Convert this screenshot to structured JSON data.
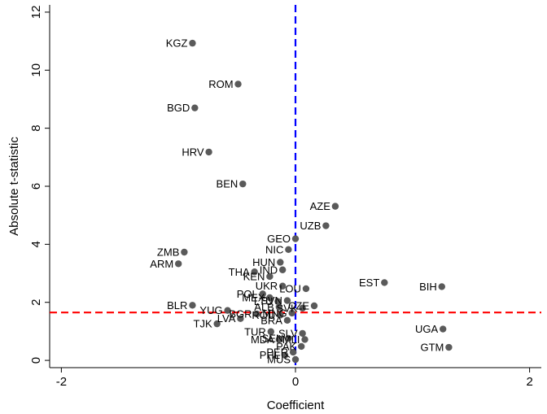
{
  "chart_data": {
    "type": "scatter",
    "title": "",
    "xlabel": "Coefficient",
    "ylabel": "Absolute t-statistic",
    "xlim": [
      -2.1,
      2.1
    ],
    "ylim": [
      -0.25,
      12.25
    ],
    "xticks": [
      -2,
      0,
      2
    ],
    "yticks": [
      0,
      2,
      4,
      6,
      8,
      10,
      12
    ],
    "grid": false,
    "legend": "none",
    "colors": {
      "points": "#5a5a5a",
      "axis": "#000000",
      "vertical_reference": "#0000ff",
      "horizontal_reference": "#ff0000"
    },
    "reference_lines": {
      "vertical_x": 0,
      "horizontal_y": 1.65
    },
    "points": [
      {
        "label": "KGZ",
        "x": -0.88,
        "y": 10.93
      },
      {
        "label": "ROM",
        "x": -0.49,
        "y": 9.52
      },
      {
        "label": "BGD",
        "x": -0.86,
        "y": 8.7
      },
      {
        "label": "HRV",
        "x": -0.74,
        "y": 7.18
      },
      {
        "label": "BEN",
        "x": -0.45,
        "y": 6.08
      },
      {
        "label": "AZE",
        "x": 0.34,
        "y": 5.31
      },
      {
        "label": "UZB",
        "x": 0.26,
        "y": 4.64
      },
      {
        "label": "GEO",
        "x": 0.0,
        "y": 4.19
      },
      {
        "label": "NIC",
        "x": -0.06,
        "y": 3.82
      },
      {
        "label": "ZMB",
        "x": -0.95,
        "y": 3.73
      },
      {
        "label": "ARM",
        "x": -1.0,
        "y": 3.33
      },
      {
        "label": "HUN",
        "x": -0.13,
        "y": 3.38
      },
      {
        "label": "IND",
        "x": -0.11,
        "y": 3.12
      },
      {
        "label": "THA",
        "x": -0.35,
        "y": 3.05
      },
      {
        "label": "KEN",
        "x": -0.22,
        "y": 2.89
      },
      {
        "label": "EST",
        "x": 0.76,
        "y": 2.68
      },
      {
        "label": "BIH",
        "x": 1.25,
        "y": 2.54
      },
      {
        "label": "UKR",
        "x": -0.11,
        "y": 2.56
      },
      {
        "label": "LOU",
        "x": 0.09,
        "y": 2.47
      },
      {
        "label": "POL",
        "x": -0.28,
        "y": 2.29
      },
      {
        "label": "MEX",
        "x": -0.22,
        "y": 2.16
      },
      {
        "label": "LTU",
        "x": -0.15,
        "y": 2.03
      },
      {
        "label": "SVN",
        "x": -0.07,
        "y": 2.06
      },
      {
        "label": "CZE",
        "x": 0.16,
        "y": 1.88
      },
      {
        "label": "BLR",
        "x": -0.88,
        "y": 1.9
      },
      {
        "label": "ALB",
        "x": -0.14,
        "y": 1.84
      },
      {
        "label": "SVK",
        "x": 0.06,
        "y": 1.8
      },
      {
        "label": "YUG",
        "x": -0.58,
        "y": 1.72
      },
      {
        "label": "BGR",
        "x": -0.33,
        "y": 1.6
      },
      {
        "label": "ROU",
        "x": -0.13,
        "y": 1.56
      },
      {
        "label": "MNG",
        "x": -0.03,
        "y": 1.63
      },
      {
        "label": "BRA",
        "x": -0.07,
        "y": 1.38
      },
      {
        "label": "LVA",
        "x": -0.47,
        "y": 1.44
      },
      {
        "label": "TJK",
        "x": -0.67,
        "y": 1.26
      },
      {
        "label": "UGA",
        "x": 1.26,
        "y": 1.08
      },
      {
        "label": "GTM",
        "x": 1.31,
        "y": 0.45
      },
      {
        "label": "TUR",
        "x": -0.21,
        "y": 0.99
      },
      {
        "label": "SLV",
        "x": 0.06,
        "y": 0.93
      },
      {
        "label": "MDA",
        "x": -0.14,
        "y": 0.72
      },
      {
        "label": "SEN",
        "x": -0.06,
        "y": 0.76
      },
      {
        "label": "MLI",
        "x": 0.08,
        "y": 0.72
      },
      {
        "label": "PAK",
        "x": 0.05,
        "y": 0.48
      },
      {
        "label": "PER",
        "x": -0.02,
        "y": 0.28
      },
      {
        "label": "PHL",
        "x": -0.09,
        "y": 0.18
      },
      {
        "label": "MUS",
        "x": 0.0,
        "y": 0.03
      }
    ]
  }
}
